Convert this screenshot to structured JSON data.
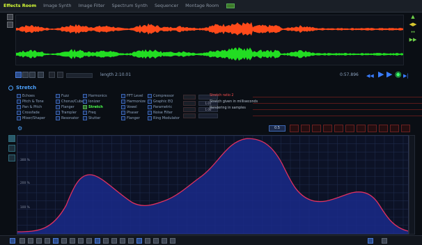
{
  "tabs": [
    {
      "label": "Effects Room",
      "active": true
    },
    {
      "label": "Image Synth",
      "active": false
    },
    {
      "label": "Image Filter",
      "active": false
    },
    {
      "label": "Spectrum Synth",
      "active": false
    },
    {
      "label": "Sequencer",
      "active": false
    },
    {
      "label": "Montage Room",
      "active": false
    }
  ],
  "colors": {
    "accent_active_tab": "#d8ff36",
    "waveform_top": "#ff4a1a",
    "waveform_bottom": "#22dd22",
    "graph_fill": "#1a2a8a",
    "graph_line": "#e03060",
    "selected_effect": "#4cff4c",
    "panel_title": "#4ea3ff"
  },
  "transport": {
    "length_label": "length 2:10.01",
    "time_display": "0:57.896",
    "controls": [
      "rewind-icon",
      "play-icon",
      "stop-icon",
      "forward-icon"
    ]
  },
  "stretch_panel": {
    "title": "Stretch",
    "effects": [
      [
        "Echoes",
        "Pitch & Tone",
        "Pan & Pitch",
        "Crossfade",
        "Mixer/Shaper"
      ],
      [
        "Fuzz",
        "Chorus/Cube",
        "Flanger",
        "Trampler",
        "Resonator"
      ],
      [
        "Harmonics",
        "Ionizer",
        "Stretch",
        "Freq",
        "Stutter"
      ],
      [
        "FFT Level",
        "Harmonize",
        "Vowel",
        "Phaser",
        "Flanger"
      ],
      [
        "Compressor",
        "Graphic EQ",
        "Parametric",
        "Noise Filter",
        "Ring Modulator"
      ]
    ],
    "selected": "Stretch",
    "param_rows": [
      {
        "value": "",
        "label": "Stretch ratio 2",
        "red": true
      },
      {
        "value": "1.01",
        "label": "Stretch given in milliseconds",
        "red": false
      },
      {
        "value": "1.00",
        "label": "Rendering in samples",
        "red": false
      },
      {
        "value": "",
        "label": "",
        "red": false
      }
    ]
  },
  "graph_panel": {
    "value_box": "0.5",
    "y_labels": [
      "300 %",
      "200 %",
      "100 %"
    ],
    "curve_presets": [
      "flat",
      "ramp-up",
      "ramp-down",
      "triangle",
      "triangle-2",
      "peak",
      "double",
      "zigzag",
      "wave",
      "arrow-down",
      "arrow-up"
    ]
  }
}
